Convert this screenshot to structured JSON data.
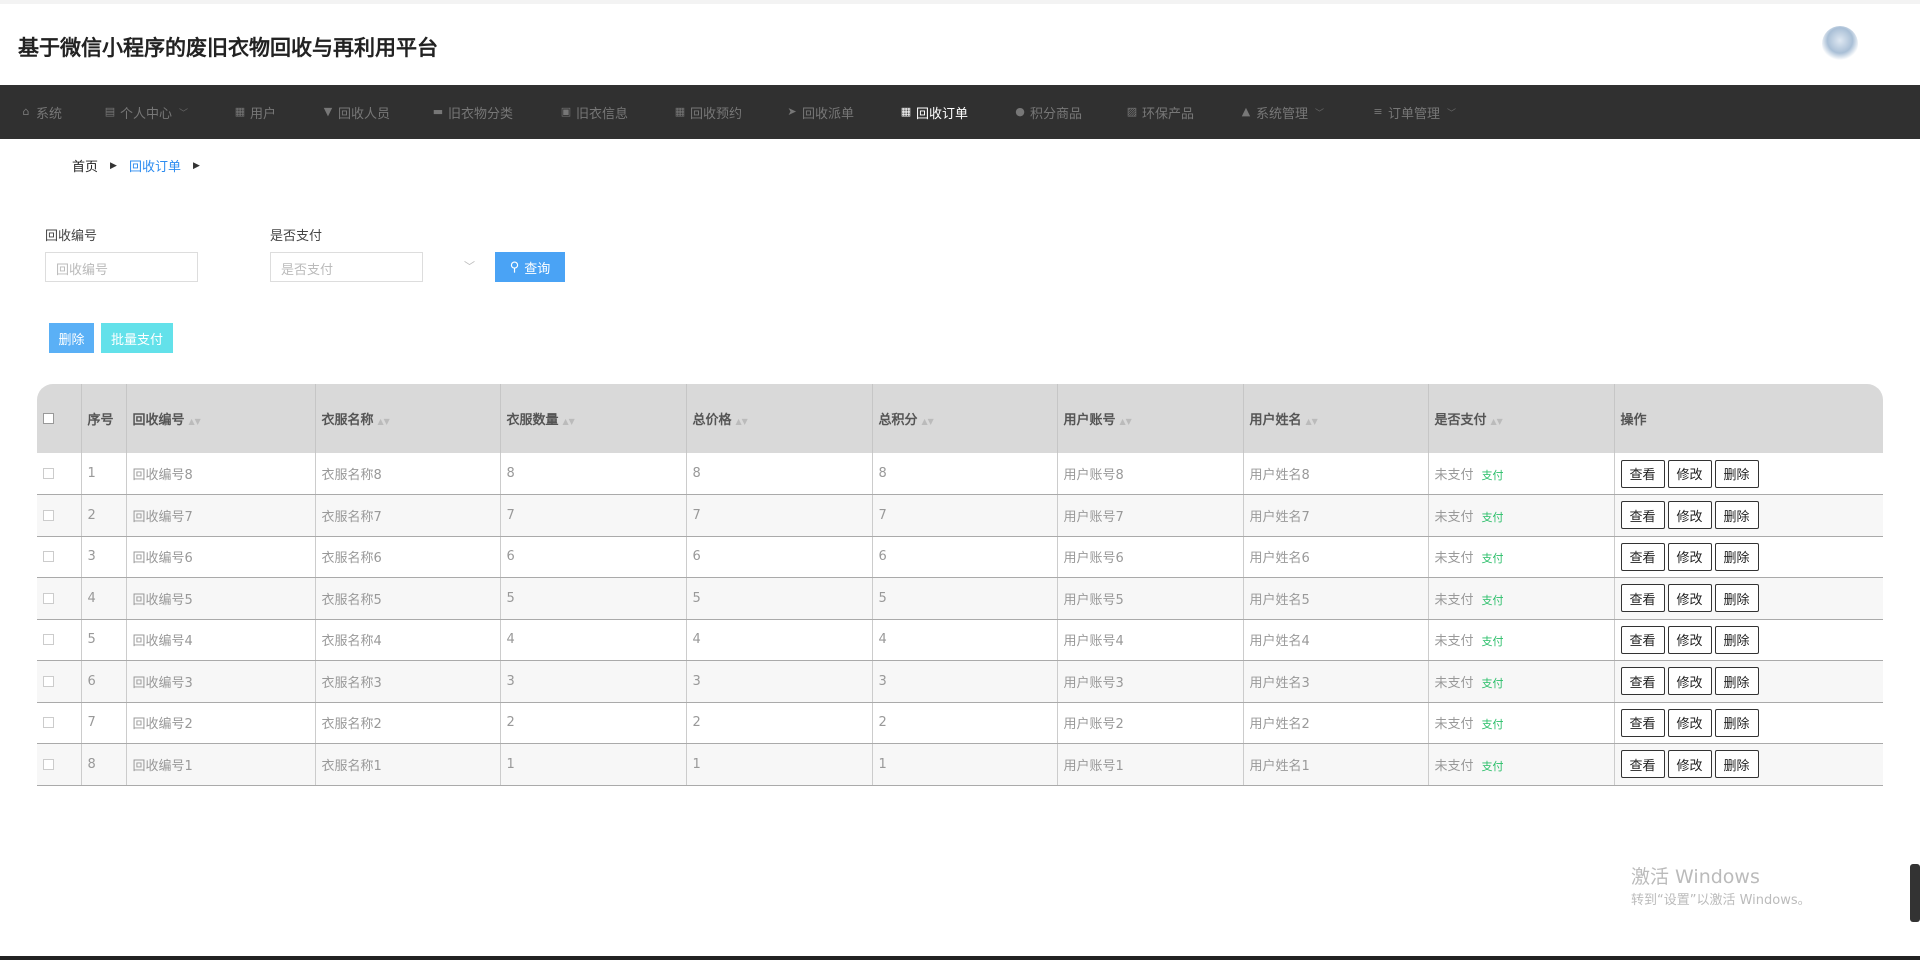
{
  "header": {
    "title": "基于微信小程序的废旧衣物回收与再利用平台"
  },
  "nav": [
    {
      "label": "系统",
      "icon": "home-icon",
      "dropdown": false
    },
    {
      "label": "个人中心",
      "icon": "card-icon",
      "dropdown": true
    },
    {
      "label": "用户",
      "icon": "grid-icon",
      "dropdown": false
    },
    {
      "label": "回收人员",
      "icon": "pin-icon",
      "dropdown": false
    },
    {
      "label": "旧衣物分类",
      "icon": "ticket-icon",
      "dropdown": false
    },
    {
      "label": "旧衣信息",
      "icon": "clipboard-icon",
      "dropdown": false
    },
    {
      "label": "回收预约",
      "icon": "grid-icon",
      "dropdown": false
    },
    {
      "label": "回收派单",
      "icon": "send-icon",
      "dropdown": false
    },
    {
      "label": "回收订单",
      "icon": "grid-icon",
      "dropdown": false,
      "active": true
    },
    {
      "label": "积分商品",
      "icon": "bulb-icon",
      "dropdown": false
    },
    {
      "label": "环保产品",
      "icon": "chart-icon",
      "dropdown": false
    },
    {
      "label": "系统管理",
      "icon": "user-icon",
      "dropdown": true
    },
    {
      "label": "订单管理",
      "icon": "sliders-icon",
      "dropdown": true
    }
  ],
  "breadcrumb": {
    "home": "首页",
    "current": "回收订单"
  },
  "search": {
    "field1_label": "回收编号",
    "field1_placeholder": "回收编号",
    "field2_label": "是否支付",
    "field2_placeholder": "是否支付",
    "query": "查询"
  },
  "actions": {
    "delete": "删除",
    "batch_pay": "批量支付"
  },
  "table": {
    "headers": [
      "序号",
      "回收编号",
      "衣服名称",
      "衣服数量",
      "总价格",
      "总积分",
      "用户账号",
      "用户姓名",
      "是否支付",
      "操作"
    ],
    "rows": [
      [
        "1",
        "回收编号8",
        "衣服名称8",
        "8",
        "8",
        "8",
        "用户账号8",
        "用户姓名8",
        "未支付"
      ],
      [
        "2",
        "回收编号7",
        "衣服名称7",
        "7",
        "7",
        "7",
        "用户账号7",
        "用户姓名7",
        "未支付"
      ],
      [
        "3",
        "回收编号6",
        "衣服名称6",
        "6",
        "6",
        "6",
        "用户账号6",
        "用户姓名6",
        "未支付"
      ],
      [
        "4",
        "回收编号5",
        "衣服名称5",
        "5",
        "5",
        "5",
        "用户账号5",
        "用户姓名5",
        "未支付"
      ],
      [
        "5",
        "回收编号4",
        "衣服名称4",
        "4",
        "4",
        "4",
        "用户账号4",
        "用户姓名4",
        "未支付"
      ],
      [
        "6",
        "回收编号3",
        "衣服名称3",
        "3",
        "3",
        "3",
        "用户账号3",
        "用户姓名3",
        "未支付"
      ],
      [
        "7",
        "回收编号2",
        "衣服名称2",
        "2",
        "2",
        "2",
        "用户账号2",
        "用户姓名2",
        "未支付"
      ],
      [
        "8",
        "回收编号1",
        "衣服名称1",
        "1",
        "1",
        "1",
        "用户账号1",
        "用户姓名1",
        "未支付"
      ]
    ],
    "pay_link": "支付",
    "row_buttons": [
      "查看",
      "修改",
      "删除"
    ]
  },
  "watermark": {
    "line1": "激活 Windows",
    "line2": "转到“设置”以激活 Windows。"
  },
  "colors": {
    "nav_bg": "#303030",
    "primary": "#4aa3f5",
    "cyan": "#63e1ea",
    "pay_green": "#2bbf6a"
  }
}
